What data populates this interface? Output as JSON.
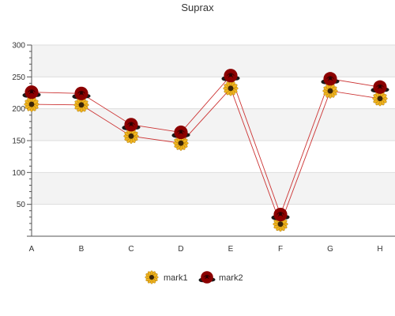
{
  "chart_data": {
    "type": "line",
    "title": "Suprax",
    "xlabel": "",
    "ylabel": "",
    "categories": [
      "A",
      "B",
      "C",
      "D",
      "E",
      "F",
      "G",
      "H"
    ],
    "ylim": [
      0,
      300
    ],
    "yticks": [
      50,
      100,
      150,
      200,
      250,
      300
    ],
    "grid": true,
    "legend": "bottom-center",
    "series": [
      {
        "name": "mark1",
        "marker": "sunflower-icon",
        "values": [
          207,
          206,
          157,
          146,
          232,
          19,
          228,
          216
        ]
      },
      {
        "name": "mark2",
        "marker": "rose-icon",
        "values": [
          226,
          224,
          175,
          163,
          252,
          34,
          247,
          234
        ]
      }
    ]
  },
  "colors": {
    "line": "#cc3333",
    "band": "#f3f3f3",
    "grid": "#dddddd",
    "axis": "#555555",
    "sunflower_petal": "#f0b41e",
    "sunflower_center": "#3a2408",
    "rose": "#8b0000"
  }
}
